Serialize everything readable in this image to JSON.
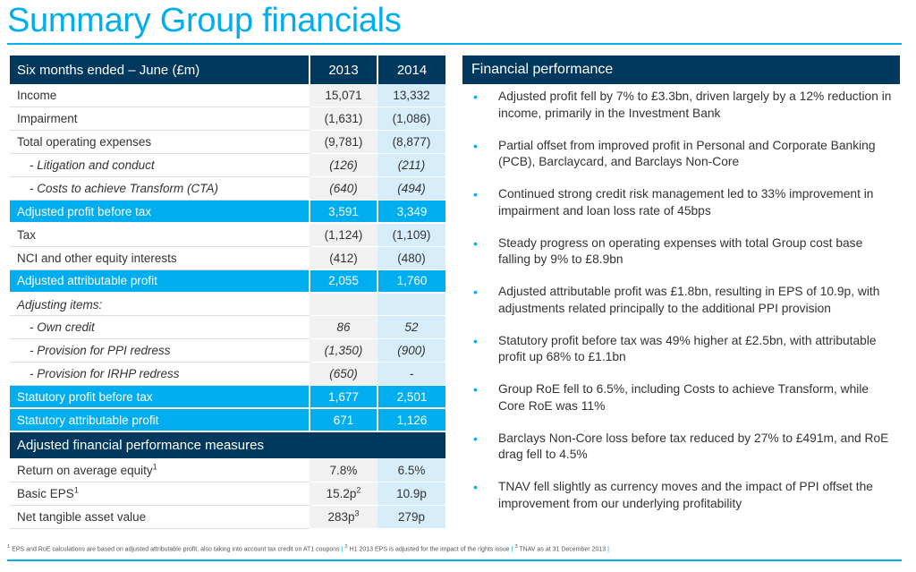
{
  "title": "Summary Group financials",
  "table": {
    "header": {
      "label": "Six months ended – June (£m)",
      "y1": "2013",
      "y2": "2014"
    },
    "rows": [
      {
        "label": "Income",
        "y1": "15,071",
        "y2": "13,332"
      },
      {
        "label": "Impairment",
        "y1": "(1,631)",
        "y2": "(1,086)"
      },
      {
        "label": "Total operating expenses",
        "y1": "(9,781)",
        "y2": "(8,877)"
      },
      {
        "label": "- Litigation and conduct",
        "y1": "(126)",
        "y2": "(211)"
      },
      {
        "label": "- Costs to achieve Transform (CTA)",
        "y1": "(640)",
        "y2": "(494)"
      },
      {
        "label": "Adjusted profit before tax",
        "y1": "3,591",
        "y2": "3,349"
      },
      {
        "label": "Tax",
        "y1": "(1,124)",
        "y2": "(1,109)"
      },
      {
        "label": "NCI and other equity interests",
        "y1": "(412)",
        "y2": "(480)"
      },
      {
        "label": "Adjusted attributable profit",
        "y1": "2,055",
        "y2": "1,760"
      },
      {
        "label": "Adjusting items:",
        "y1": "",
        "y2": ""
      },
      {
        "label": "- Own credit",
        "y1": "86",
        "y2": "52"
      },
      {
        "label": "- Provision for PPI redress",
        "y1": "(1,350)",
        "y2": "(900)"
      },
      {
        "label": "- Provision for IRHP redress",
        "y1": "(650)",
        "y2": "-"
      },
      {
        "label": "Statutory profit before tax",
        "y1": "1,677",
        "y2": "2,501"
      },
      {
        "label": "Statutory attributable profit",
        "y1": "671",
        "y2": "1,126"
      }
    ],
    "section": "Adjusted financial performance measures",
    "measures": [
      {
        "label": "Return on average equity",
        "sup": "1",
        "y1": "7.8%",
        "y1_sup": "",
        "y2": "6.5%"
      },
      {
        "label": "Basic EPS",
        "sup": "1",
        "y1": "15.2p",
        "y1_sup": "2",
        "y2": "10.9p"
      },
      {
        "label": "Net tangible asset value",
        "sup": "",
        "y1": "283p",
        "y1_sup": "3",
        "y2": "279p"
      }
    ]
  },
  "panel": {
    "title": "Financial performance",
    "bullet_char": "•",
    "bullets": [
      "Adjusted profit fell by 7% to £3.3bn, driven largely by a 12% reduction in income, primarily in the Investment Bank",
      "Partial offset from improved profit in Personal and Corporate Banking (PCB), Barclaycard, and Barclays Non-Core",
      "Continued strong credit risk management led to 33% improvement in impairment and loan loss rate of 45bps",
      "Steady progress on operating expenses with total Group cost base falling by 9% to £8.9bn",
      "Adjusted attributable profit was £1.8bn, resulting in EPS of 10.9p, with adjustments related principally to the additional PPI provision",
      "Statutory profit before tax was 49% higher at £2.5bn, with attributable profit up 68% to £1.1bn",
      "Group RoE fell to 6.5%, including Costs to achieve Transform, while Core RoE was 11%",
      "Barclays Non-Core loss before tax reduced by 27% to £491m, and RoE drag fell to 4.5%",
      "TNAV fell slightly as currency moves and the impact of PPI offset the improvement from our underlying profitability"
    ]
  },
  "footnotes": [
    {
      "num": "1",
      "text": "EPS and RoE calculations are based on adjusted attributable profit, also taking into account tax credit on AT1 coupons"
    },
    {
      "num": "2",
      "text": "H1 2013 EPS is adjusted for the impact of the rights issue"
    },
    {
      "num": "3",
      "text": "TNAV as at 31 December 2013"
    }
  ],
  "footnote_separator": "|",
  "colors": {
    "accent": "#00aeef",
    "navy": "#00395d",
    "light_blue": "#d7eefa",
    "light_grey": "#f1f1f1"
  }
}
